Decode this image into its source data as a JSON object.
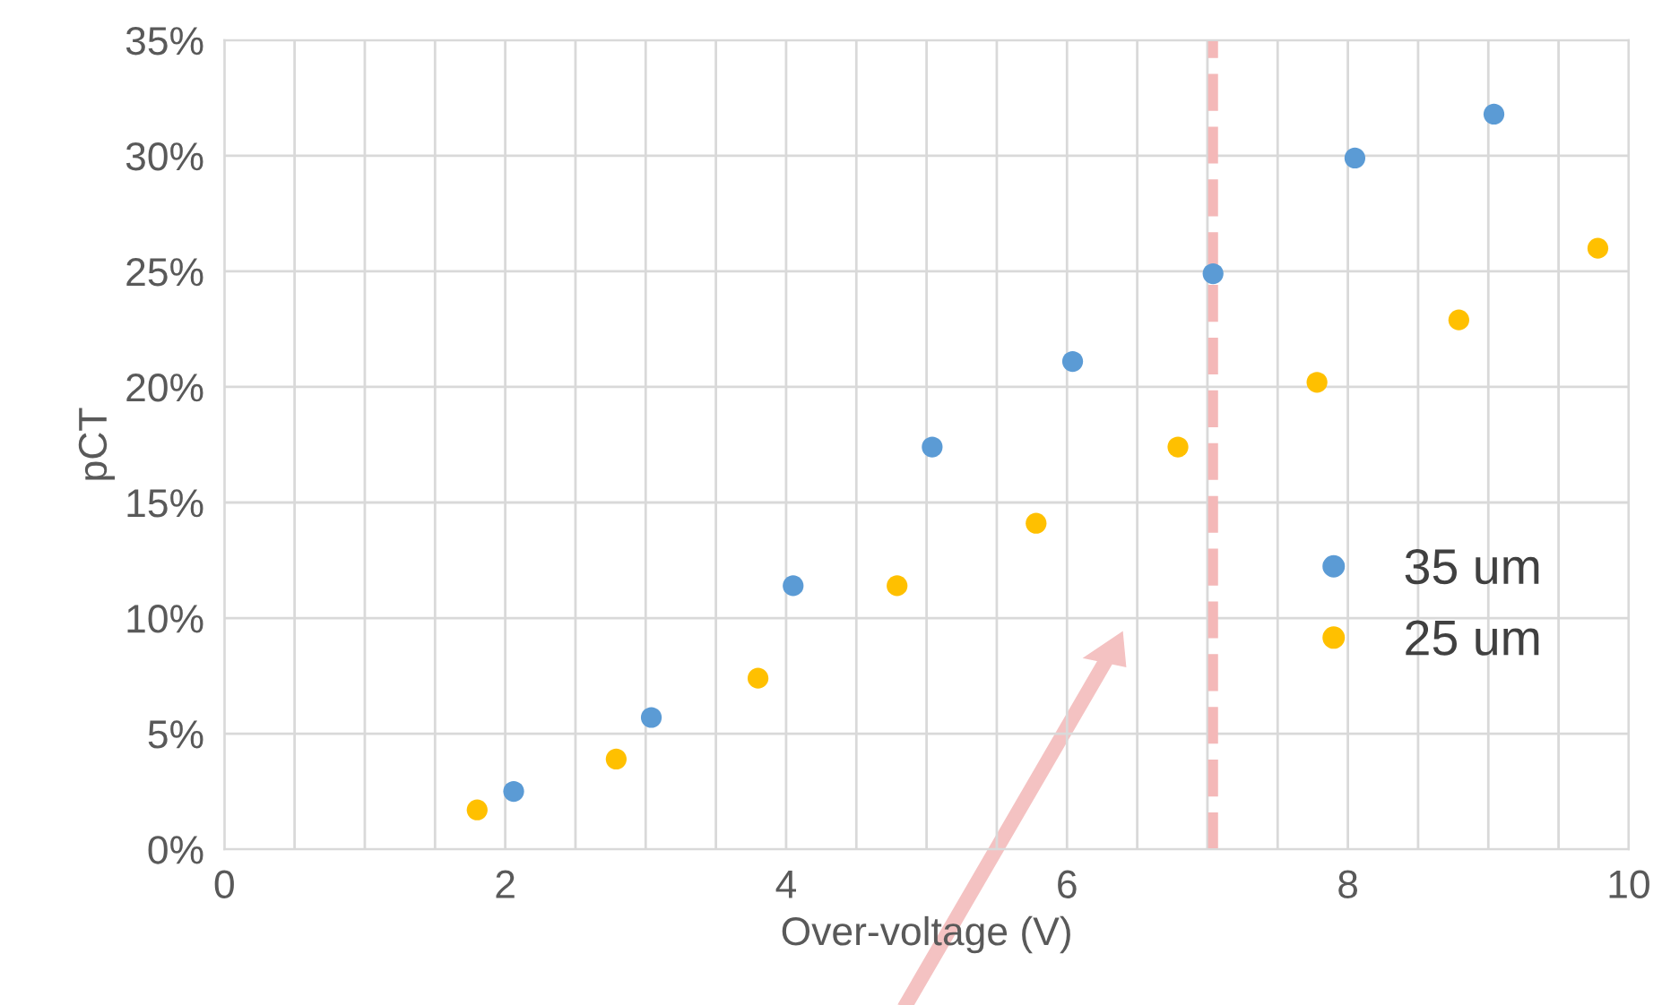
{
  "chart_data": {
    "type": "scatter",
    "xlabel": "Over-voltage (V)",
    "ylabel": "pCT",
    "series": [
      {
        "name": "35 um",
        "color": "#5b9bd5",
        "x": [
          2.06,
          3.04,
          4.05,
          5.04,
          6.04,
          7.04,
          8.05,
          9.04
        ],
        "values": [
          2.5,
          5.7,
          11.4,
          17.4,
          21.1,
          24.9,
          29.9,
          31.8
        ]
      },
      {
        "name": "25 um",
        "color": "#ffc000",
        "x": [
          1.8,
          2.79,
          3.8,
          4.79,
          5.78,
          6.79,
          7.78,
          8.79,
          9.78
        ],
        "values": [
          1.7,
          3.9,
          7.4,
          11.4,
          14.1,
          17.4,
          20.2,
          22.9,
          26.0
        ]
      }
    ],
    "xlim": [
      0,
      10
    ],
    "xticks": [
      0,
      {
        "value": 0.5,
        "label": null
      },
      {
        "value": 1,
        "label": null
      },
      {
        "value": 1.5,
        "label": null
      },
      2,
      {
        "value": 2.5,
        "label": null
      },
      {
        "value": 3,
        "label": null
      },
      {
        "value": 3.5,
        "label": null
      },
      4,
      {
        "value": 4.5,
        "label": null
      },
      {
        "value": 5,
        "label": null
      },
      {
        "value": 5.5,
        "label": null
      },
      6,
      {
        "value": 6.5,
        "label": null
      },
      {
        "value": 7,
        "label": null
      },
      {
        "value": 7.5,
        "label": null
      },
      8,
      {
        "value": 8.5,
        "label": null
      },
      {
        "value": 9,
        "label": null
      },
      {
        "value": 9.5,
        "label": null
      },
      10
    ],
    "ylim": [
      0,
      35
    ],
    "yticks": [
      {
        "value": 0,
        "label": "0%"
      },
      {
        "value": 5,
        "label": "5%"
      },
      {
        "value": 10,
        "label": "10%"
      },
      {
        "value": 15,
        "label": "15%"
      },
      {
        "value": 20,
        "label": "20%"
      },
      {
        "value": 25,
        "label": "25%"
      },
      {
        "value": 30,
        "label": "30%"
      },
      {
        "value": 35,
        "label": "35%"
      }
    ],
    "ref_lines": [
      {
        "axis": "x",
        "value": 7.04,
        "color": "#f4b8b8",
        "line_style": "dashed"
      }
    ],
    "grid": true,
    "legend": "right",
    "marker": "circle"
  }
}
